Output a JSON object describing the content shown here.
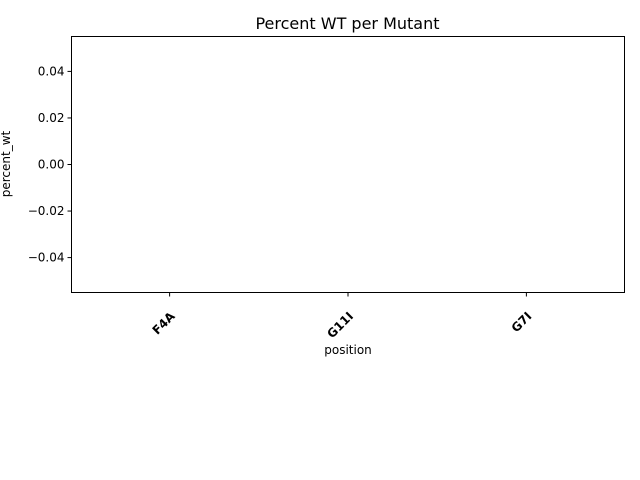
{
  "chart_data": {
    "type": "bar",
    "title": "Percent WT per Mutant",
    "xlabel": "position",
    "ylabel": "percent_wt",
    "categories": [
      "F4A",
      "G11I",
      "G7I"
    ],
    "values": [
      0,
      0,
      0
    ],
    "ylim": [
      -0.055,
      0.055
    ],
    "yticks": [
      0.04,
      0.02,
      0.0,
      -0.02,
      -0.04
    ],
    "ytick_labels": [
      "0.04",
      "0.02",
      "0.00",
      "−0.02",
      "−0.04"
    ],
    "grid": false,
    "legend": "none"
  }
}
